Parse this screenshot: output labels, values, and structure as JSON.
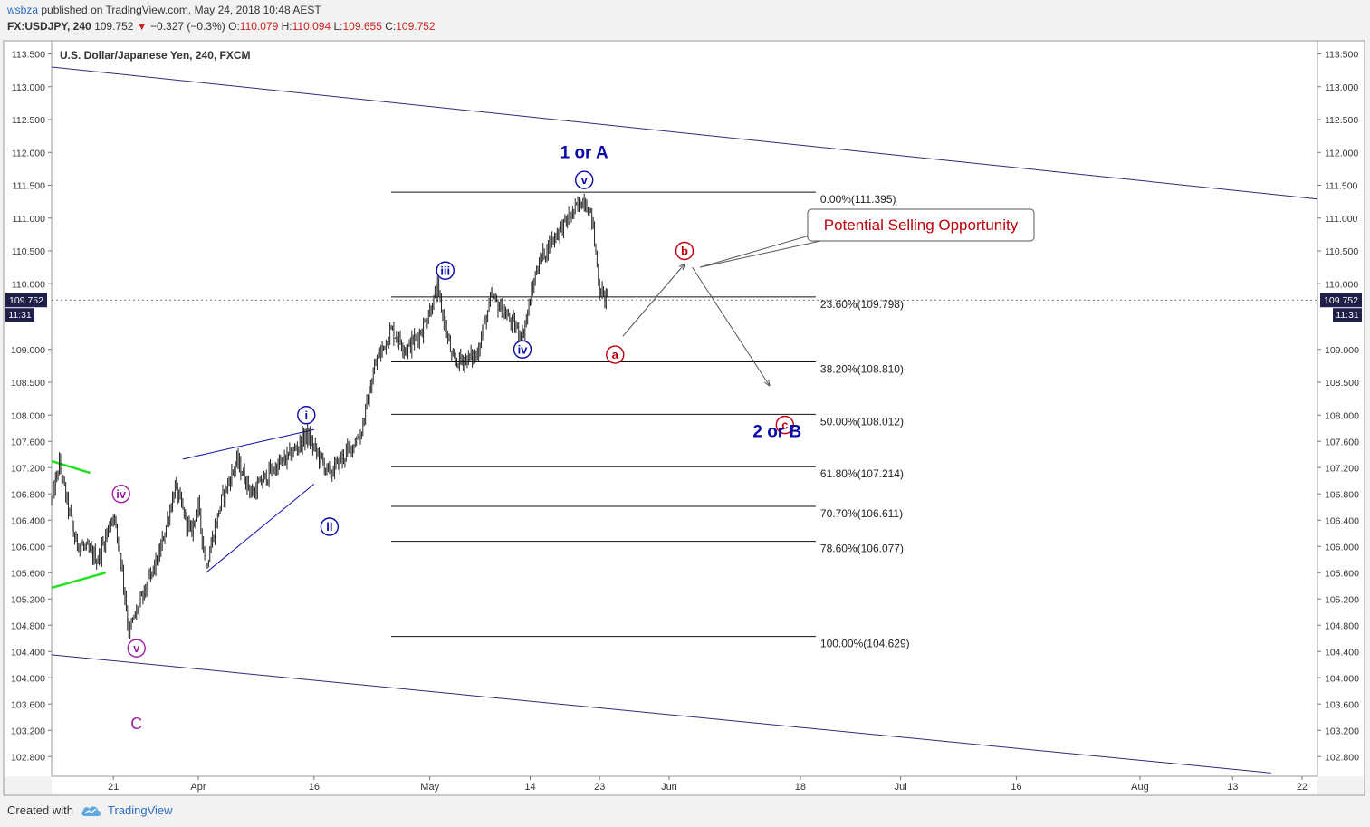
{
  "header": {
    "username": "wsbza",
    "published_text": "published on TradingView.com, May 24, 2018 10:48 AEST",
    "symbol_line": {
      "symbol": "FX:USDJPY, 240",
      "last": "109.752",
      "down_arrow": "▼",
      "change": "−0.327 (−0.3%)",
      "o_label": "O:",
      "o_value": "110.079",
      "h_label": "H:",
      "h_value": "110.094",
      "l_label": "L:",
      "l_value": "109.655",
      "c_label": "C:",
      "c_value": "109.752"
    }
  },
  "footer": {
    "created_with": "Created with",
    "brand": "TradingView",
    "logo_icon": "tradingview-cloud-icon"
  },
  "colors": {
    "candle": "#222222",
    "channel": "#2a2a7a",
    "wave_blue": "#0a0aa8",
    "wave_purple": "#a020a0",
    "wave_red": "#c0000a",
    "green_line": "#22e022",
    "price_tag_bg": "#1f1f4a"
  },
  "chart_data": {
    "type": "candlestick",
    "title": "U.S. Dollar/Japanese Yen, 240, FXCM",
    "y_axis": {
      "ylim": [
        102.5,
        113.7
      ],
      "ticks": [
        "113.500",
        "113.000",
        "112.500",
        "112.000",
        "111.500",
        "111.000",
        "110.500",
        "110.000",
        "109.000",
        "108.500",
        "108.000",
        "107.600",
        "107.200",
        "106.800",
        "106.400",
        "106.000",
        "105.600",
        "105.200",
        "104.800",
        "104.400",
        "104.000",
        "103.600",
        "103.200",
        "102.800"
      ]
    },
    "x_axis": {
      "range": [
        "2018-03-13",
        "2018-08-24"
      ],
      "ticks": [
        {
          "label": "21",
          "date": "2018-03-21"
        },
        {
          "label": "Apr",
          "date": "2018-04-01"
        },
        {
          "label": "16",
          "date": "2018-04-16"
        },
        {
          "label": "May",
          "date": "2018-05-01"
        },
        {
          "label": "14",
          "date": "2018-05-14"
        },
        {
          "label": "23",
          "date": "2018-05-23"
        },
        {
          "label": "Jun",
          "date": "2018-06-01"
        },
        {
          "label": "18",
          "date": "2018-06-18"
        },
        {
          "label": "Jul",
          "date": "2018-07-01"
        },
        {
          "label": "16",
          "date": "2018-07-16"
        },
        {
          "label": "Aug",
          "date": "2018-08-01"
        },
        {
          "label": "13",
          "date": "2018-08-13"
        },
        {
          "label": "22",
          "date": "2018-08-22"
        }
      ]
    },
    "price_line": {
      "value": 109.752,
      "label": "109.752",
      "countdown": "11:31"
    },
    "anchors": [
      {
        "date": "2018-03-13",
        "price": 106.7
      },
      {
        "date": "2018-03-14",
        "price": 107.25
      },
      {
        "date": "2018-03-16",
        "price": 106.1
      },
      {
        "date": "2018-03-19",
        "price": 105.8
      },
      {
        "date": "2018-03-21",
        "price": 106.5
      },
      {
        "date": "2018-03-22",
        "price": 105.8
      },
      {
        "date": "2018-03-23",
        "price": 104.7
      },
      {
        "date": "2018-03-25",
        "price": 105.3
      },
      {
        "date": "2018-03-27",
        "price": 105.9
      },
      {
        "date": "2018-03-29",
        "price": 106.9
      },
      {
        "date": "2018-03-31",
        "price": 106.2
      },
      {
        "date": "2018-04-01",
        "price": 106.6
      },
      {
        "date": "2018-04-02",
        "price": 105.7
      },
      {
        "date": "2018-04-04",
        "price": 106.7
      },
      {
        "date": "2018-04-06",
        "price": 107.3
      },
      {
        "date": "2018-04-08",
        "price": 106.8
      },
      {
        "date": "2018-04-10",
        "price": 107.1
      },
      {
        "date": "2018-04-13",
        "price": 107.4
      },
      {
        "date": "2018-04-15",
        "price": 107.7
      },
      {
        "date": "2018-04-18",
        "price": 107.1
      },
      {
        "date": "2018-04-20",
        "price": 107.4
      },
      {
        "date": "2018-04-22",
        "price": 107.7
      },
      {
        "date": "2018-04-24",
        "price": 108.8
      },
      {
        "date": "2018-04-26",
        "price": 109.3
      },
      {
        "date": "2018-04-28",
        "price": 109.0
      },
      {
        "date": "2018-04-30",
        "price": 109.3
      },
      {
        "date": "2018-05-02",
        "price": 109.9
      },
      {
        "date": "2018-05-04",
        "price": 108.8
      },
      {
        "date": "2018-05-07",
        "price": 108.9
      },
      {
        "date": "2018-05-09",
        "price": 109.8
      },
      {
        "date": "2018-05-11",
        "price": 109.5
      },
      {
        "date": "2018-05-13",
        "price": 109.2
      },
      {
        "date": "2018-05-15",
        "price": 110.3
      },
      {
        "date": "2018-05-17",
        "price": 110.7
      },
      {
        "date": "2018-05-19",
        "price": 111.0
      },
      {
        "date": "2018-05-21",
        "price": 111.3
      },
      {
        "date": "2018-05-22",
        "price": 111.0
      },
      {
        "date": "2018-05-23",
        "price": 109.9
      },
      {
        "date": "2018-05-24",
        "price": 109.75
      }
    ],
    "channel_lines": [
      {
        "start": {
          "date": "2018-03-13",
          "price": 113.3
        },
        "end": {
          "date": "2018-08-24",
          "price": 111.29
        }
      },
      {
        "start": {
          "date": "2018-03-13",
          "price": 104.35
        },
        "end": {
          "date": "2018-08-18",
          "price": 102.55
        }
      }
    ],
    "trend_lines": [
      {
        "color_key": "green_line",
        "start": {
          "date": "2018-03-13",
          "price": 107.3
        },
        "end": {
          "date": "2018-03-18",
          "price": 107.12
        }
      },
      {
        "color_key": "green_line",
        "start": {
          "date": "2018-03-13",
          "price": 105.37
        },
        "end": {
          "date": "2018-03-20",
          "price": 105.6
        }
      },
      {
        "color_key": "wave_blue",
        "start": {
          "date": "2018-03-30",
          "price": 107.33
        },
        "end": {
          "date": "2018-04-16",
          "price": 107.78
        }
      },
      {
        "color_key": "wave_blue",
        "start": {
          "date": "2018-04-02",
          "price": 105.6
        },
        "end": {
          "date": "2018-04-16",
          "price": 106.95
        }
      }
    ],
    "fib_retracement": {
      "start_date": "2018-04-26",
      "end_date": "2018-06-20",
      "levels": [
        {
          "label": "0.00%(111.395)",
          "price": 111.395
        },
        {
          "label": "23.60%(109.798)",
          "price": 109.798
        },
        {
          "label": "38.20%(108.810)",
          "price": 108.81
        },
        {
          "label": "50.00%(108.012)",
          "price": 108.012
        },
        {
          "label": "61.80%(107.214)",
          "price": 107.214
        },
        {
          "label": "70.70%(106.611)",
          "price": 106.611
        },
        {
          "label": "78.60%(106.077)",
          "price": 106.077
        },
        {
          "label": "100.00%(104.629)",
          "price": 104.629
        }
      ]
    },
    "wave_labels": [
      {
        "text": "iv",
        "date": "2018-03-22",
        "price": 106.8,
        "color_key": "wave_purple",
        "circle": true
      },
      {
        "text": "v",
        "date": "2018-03-24",
        "price": 104.45,
        "color_key": "wave_purple",
        "circle": true
      },
      {
        "text": "C",
        "date": "2018-03-24",
        "price": 103.3,
        "color_key": "wave_purple",
        "circle": false,
        "size": 18
      },
      {
        "text": "i",
        "date": "2018-04-15",
        "price": 108.0,
        "color_key": "wave_blue",
        "circle": true
      },
      {
        "text": "ii",
        "date": "2018-04-18",
        "price": 106.3,
        "color_key": "wave_blue",
        "circle": true
      },
      {
        "text": "iii",
        "date": "2018-05-03",
        "price": 110.2,
        "color_key": "wave_blue",
        "circle": true
      },
      {
        "text": "iv",
        "date": "2018-05-13",
        "price": 109.0,
        "color_key": "wave_blue",
        "circle": true
      },
      {
        "text": "v",
        "date": "2018-05-21",
        "price": 111.58,
        "color_key": "wave_blue",
        "circle": true
      },
      {
        "text": "1 or A",
        "date": "2018-05-21",
        "price": 112.0,
        "color_key": "wave_blue",
        "circle": false,
        "size": 19
      },
      {
        "text": "a",
        "date": "2018-05-25",
        "price": 108.92,
        "color_key": "wave_red",
        "circle": true
      },
      {
        "text": "b",
        "date": "2018-06-03",
        "price": 110.5,
        "color_key": "wave_red",
        "circle": true
      },
      {
        "text": "c",
        "date": "2018-06-16",
        "price": 107.85,
        "color_key": "wave_red",
        "circle": true
      },
      {
        "text": "2 or B",
        "date": "2018-06-15",
        "price": 107.75,
        "color_key": "wave_blue",
        "circle": false,
        "size": 19
      }
    ],
    "arrows": [
      {
        "start": {
          "date": "2018-05-26",
          "price": 109.2
        },
        "end": {
          "date": "2018-06-03",
          "price": 110.3
        }
      },
      {
        "start": {
          "date": "2018-06-04",
          "price": 110.25
        },
        "end": {
          "date": "2018-06-14",
          "price": 108.45
        }
      }
    ],
    "callout": {
      "text": "Potential Selling Opportunity",
      "anchor": {
        "date": "2018-06-05",
        "price": 110.25
      }
    }
  }
}
